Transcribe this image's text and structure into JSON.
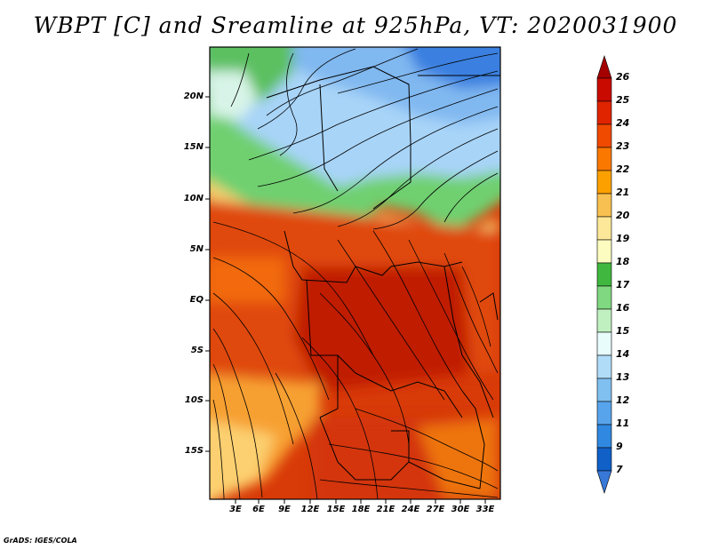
{
  "title": "WBPT [C] and Sreamline at 925hPa, VT: 2020031900",
  "credit": "GrADS: IGES/COLA",
  "lat_labels": [
    "20N",
    "15N",
    "10N",
    "5N",
    "EQ",
    "5S",
    "10S",
    "15S"
  ],
  "lon_labels": [
    "3E",
    "6E",
    "9E",
    "12E",
    "15E",
    "18E",
    "21E",
    "24E",
    "27E",
    "30E",
    "33E"
  ],
  "colorbar": {
    "labels": [
      "26",
      "25",
      "24",
      "23",
      "22",
      "21",
      "20",
      "19",
      "18",
      "17",
      "16",
      "15",
      "14",
      "13",
      "12",
      "11",
      "9",
      "7"
    ],
    "colors": [
      "#a50000",
      "#c80a00",
      "#e02400",
      "#f04a00",
      "#fa7800",
      "#fca000",
      "#f8c050",
      "#fce898",
      "#fcfcc0",
      "#40b840",
      "#80d880",
      "#c0f0c0",
      "#e8fcfc",
      "#b0dcf8",
      "#80c0f0",
      "#58a4ec",
      "#3088e0",
      "#1060c8",
      "#3878d8"
    ]
  }
}
